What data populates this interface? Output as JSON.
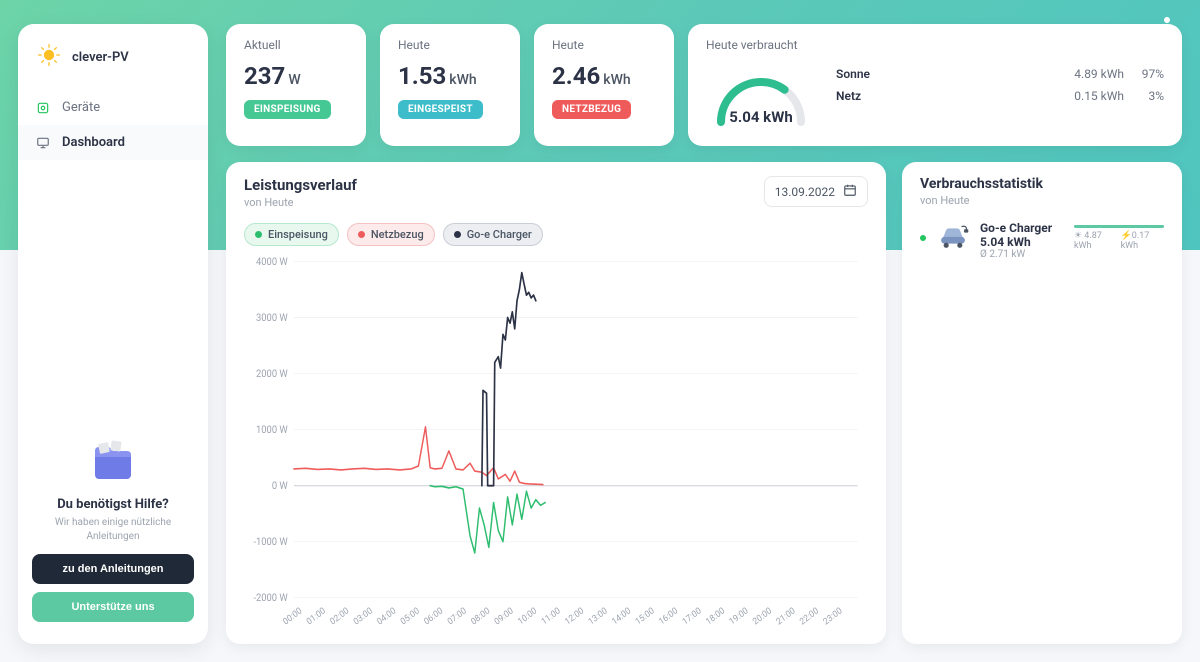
{
  "brand": {
    "name": "clever-PV"
  },
  "nav": {
    "items": [
      {
        "label": "Geräte",
        "icon": "device-icon",
        "icon_color": "#22c55e",
        "active": false
      },
      {
        "label": "Dashboard",
        "icon": "monitor-icon",
        "icon_color": "#6b7280",
        "active": true
      }
    ]
  },
  "help": {
    "title": "Du benötigst Hilfe?",
    "subtitle": "Wir haben einige nützliche Anleitungen",
    "btn_primary": "zu den Anleitungen",
    "btn_secondary": "Unterstütze uns"
  },
  "stats": [
    {
      "label": "Aktuell",
      "value": "237",
      "unit": "W",
      "badge": "EINSPEISUNG",
      "badge_color": "#46c894"
    },
    {
      "label": "Heute",
      "value": "1.53",
      "unit": "kWh",
      "badge": "EINGESPEIST",
      "badge_color": "#3dbdc9"
    },
    {
      "label": "Heute",
      "value": "2.46",
      "unit": "kWh",
      "badge": "NETZBEZUG",
      "badge_color": "#ef5b5b"
    }
  ],
  "consumption": {
    "label": "Heute verbraucht",
    "gauge": {
      "value": "5.04 kWh",
      "fraction": 0.7,
      "color": "#2dbd8f",
      "track_color": "#e5e7eb"
    },
    "rows": [
      {
        "label": "Sonne",
        "value": "4.89 kWh",
        "pct": "97%"
      },
      {
        "label": "Netz",
        "value": "0.15 kWh",
        "pct": "3%"
      }
    ]
  },
  "chart": {
    "title": "Leistungsverlauf",
    "subtitle": "von Heute",
    "date": "13.09.2022",
    "type": "line",
    "background": "#ffffff",
    "grid_color": "#eef0f3",
    "axis_color": "#d1d5db",
    "ylim": [
      -2000,
      4000
    ],
    "yticks": [
      -2000,
      -1000,
      0,
      1000,
      2000,
      3000,
      4000
    ],
    "ytick_suffix": " W",
    "xlim_hours": [
      0,
      24
    ],
    "xticks_hours": [
      0,
      1,
      2,
      3,
      4,
      5,
      6,
      7,
      8,
      9,
      10,
      11,
      12,
      13,
      14,
      15,
      16,
      17,
      18,
      19,
      20,
      21,
      22,
      23
    ],
    "legend": [
      {
        "label": "Einspeisung",
        "color": "#2dbd6e",
        "pill_bg": "#e8f8ef",
        "pill_border": "#b6e8cd"
      },
      {
        "label": "Netzbezug",
        "color": "#ef5b5b",
        "pill_bg": "#fdeaea",
        "pill_border": "#f4c2c2"
      },
      {
        "label": "Go-e Charger",
        "color": "#2c3346",
        "pill_bg": "#eceef2",
        "pill_border": "#c9cdd6"
      }
    ],
    "series": [
      {
        "name": "Netzbezug",
        "color": "#ef5b5b",
        "width": 1.4,
        "points": [
          [
            0,
            300
          ],
          [
            0.5,
            310
          ],
          [
            1,
            290
          ],
          [
            1.5,
            300
          ],
          [
            2,
            280
          ],
          [
            2.5,
            300
          ],
          [
            3,
            310
          ],
          [
            3.5,
            290
          ],
          [
            4,
            300
          ],
          [
            4.5,
            280
          ],
          [
            5,
            300
          ],
          [
            5.3,
            350
          ],
          [
            5.6,
            1050
          ],
          [
            5.8,
            320
          ],
          [
            6,
            300
          ],
          [
            6.3,
            310
          ],
          [
            6.6,
            620
          ],
          [
            6.9,
            300
          ],
          [
            7.2,
            280
          ],
          [
            7.5,
            400
          ],
          [
            7.7,
            260
          ],
          [
            8,
            240
          ],
          [
            8.2,
            180
          ],
          [
            8.5,
            320
          ],
          [
            8.7,
            120
          ],
          [
            9,
            200
          ],
          [
            9.2,
            80
          ],
          [
            9.4,
            260
          ],
          [
            9.6,
            60
          ],
          [
            9.8,
            40
          ],
          [
            10,
            30
          ],
          [
            10.3,
            25
          ],
          [
            10.6,
            20
          ]
        ]
      },
      {
        "name": "Einspeisung",
        "color": "#2dbd6e",
        "width": 1.4,
        "points": [
          [
            5.8,
            0
          ],
          [
            6.0,
            -20
          ],
          [
            6.3,
            -10
          ],
          [
            6.6,
            -40
          ],
          [
            6.9,
            -20
          ],
          [
            7.2,
            -60
          ],
          [
            7.5,
            -900
          ],
          [
            7.7,
            -1200
          ],
          [
            7.9,
            -400
          ],
          [
            8.1,
            -700
          ],
          [
            8.3,
            -1100
          ],
          [
            8.5,
            -300
          ],
          [
            8.7,
            -800
          ],
          [
            8.9,
            -1000
          ],
          [
            9.1,
            -200
          ],
          [
            9.3,
            -700
          ],
          [
            9.5,
            -150
          ],
          [
            9.7,
            -600
          ],
          [
            9.9,
            -100
          ],
          [
            10.1,
            -400
          ],
          [
            10.3,
            -250
          ],
          [
            10.5,
            -350
          ],
          [
            10.7,
            -300
          ]
        ]
      },
      {
        "name": "Go-e Charger",
        "color": "#2c3346",
        "width": 1.6,
        "points": [
          [
            8.0,
            0
          ],
          [
            8.05,
            1700
          ],
          [
            8.2,
            1650
          ],
          [
            8.25,
            0
          ],
          [
            8.5,
            0
          ],
          [
            8.55,
            2200
          ],
          [
            8.7,
            2300
          ],
          [
            8.8,
            2100
          ],
          [
            8.9,
            2700
          ],
          [
            9.0,
            2600
          ],
          [
            9.1,
            3000
          ],
          [
            9.2,
            2900
          ],
          [
            9.3,
            3100
          ],
          [
            9.4,
            2800
          ],
          [
            9.5,
            3300
          ],
          [
            9.6,
            3500
          ],
          [
            9.7,
            3800
          ],
          [
            9.8,
            3600
          ],
          [
            9.9,
            3400
          ],
          [
            10.0,
            3450
          ],
          [
            10.1,
            3350
          ],
          [
            10.2,
            3400
          ],
          [
            10.3,
            3300
          ]
        ]
      }
    ]
  },
  "usage": {
    "title": "Verbrauchsstatistik",
    "subtitle": "von Heute",
    "items": [
      {
        "name": "Go-e Charger",
        "total": "5.04 kWh",
        "avg": "Ø 2.71 kW",
        "progress_color": "#5cc9a3",
        "sun_val": "4.87 kWh",
        "grid_val": "0.17 kWh"
      }
    ]
  }
}
